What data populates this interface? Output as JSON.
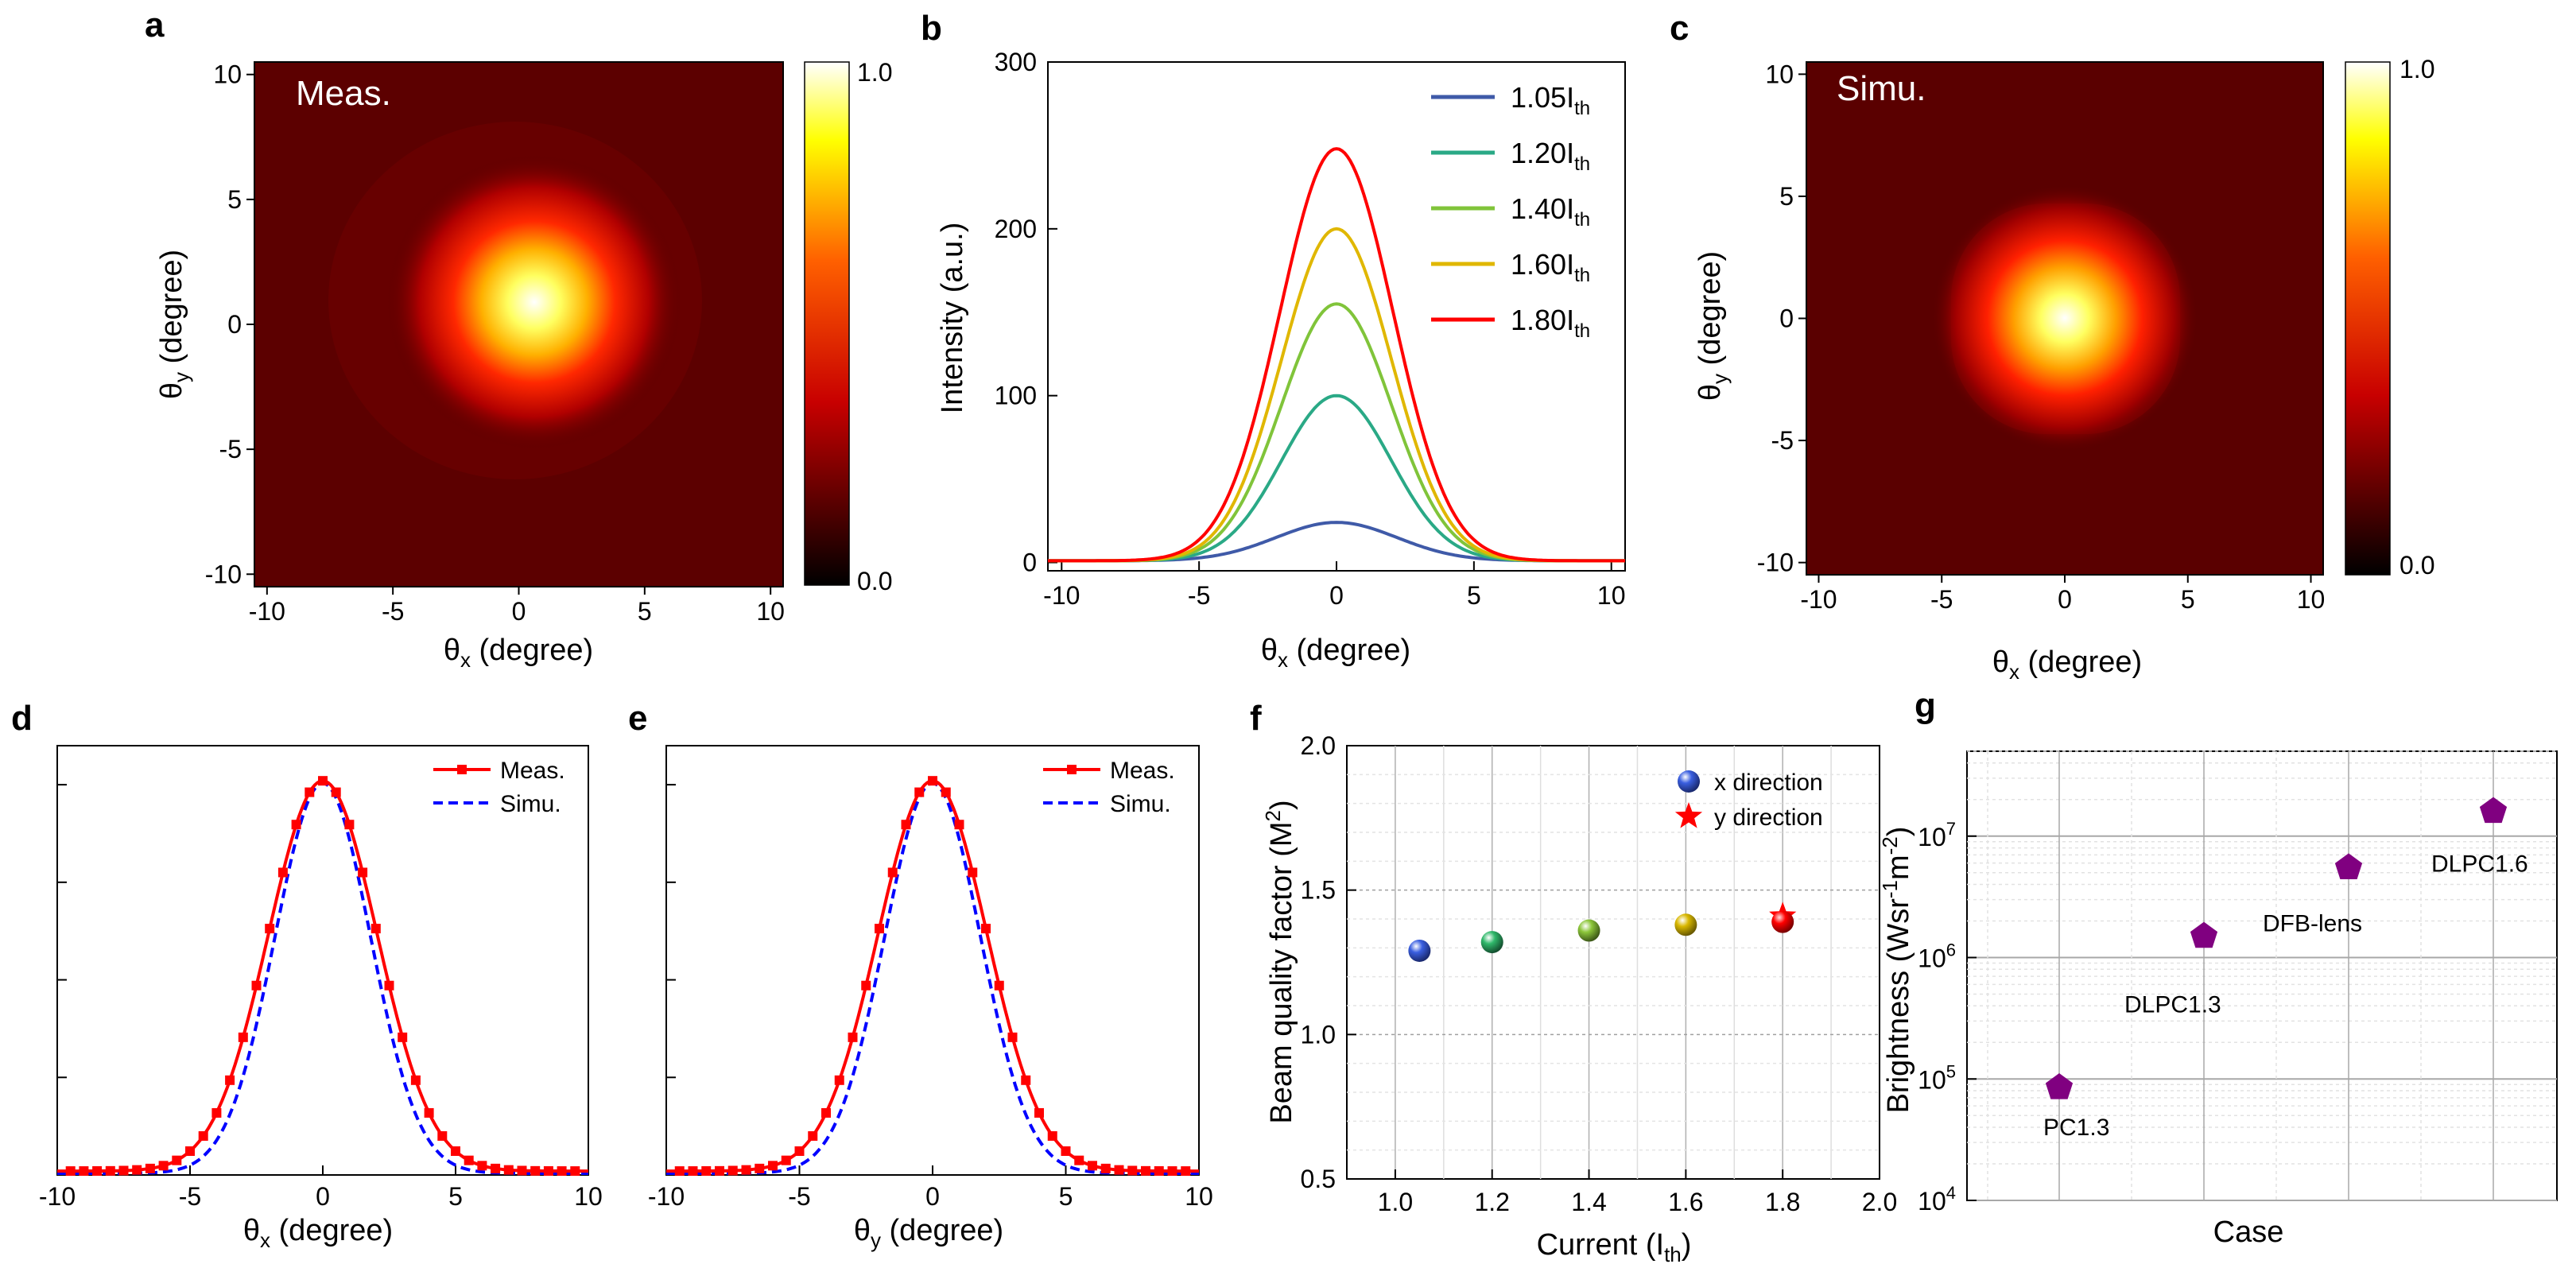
{
  "colors": {
    "hot_low": "#000000",
    "hot_mid": "#e60000",
    "hot_high": "#ffff00",
    "hot_top": "#ffffff",
    "meas_red": "#ff0000",
    "simu_blue": "#0000ff",
    "purple": "#800080"
  },
  "chart_data": [
    {
      "panel": "a",
      "type": "heatmap",
      "inset_label": "Meas.",
      "xlabel_main": "θ",
      "xlabel_sub": "x",
      "xlabel_rest": " (degree)",
      "ylabel_main": "θ",
      "ylabel_sub": "y",
      "ylabel_rest": " (degree)",
      "xlim": [
        -10.5,
        10.5
      ],
      "ylim": [
        -10.5,
        10.5
      ],
      "xticks": [
        -10,
        -5,
        0,
        5,
        10
      ],
      "yticks": [
        -10,
        -5,
        0,
        5,
        10
      ],
      "colorbar": {
        "min_label": "0.0",
        "max_label": "1.0",
        "range": [
          0,
          1
        ]
      },
      "peak": {
        "x": 0.4,
        "y": 0.6,
        "value": 1.0
      }
    },
    {
      "panel": "b",
      "type": "line",
      "xlabel_main": "θ",
      "xlabel_sub": "x",
      "xlabel_rest": " (degree)",
      "ylabel": "Intensity (a.u.)",
      "xlim": [
        -10.5,
        10.5
      ],
      "ylim": [
        -5,
        300
      ],
      "xticks": [
        -10,
        -5,
        0,
        5,
        10
      ],
      "yticks": [
        0,
        100,
        200,
        300
      ],
      "legend_position": "top-right",
      "series": [
        {
          "name": "1.05I",
          "name_sub": "th",
          "color": "#3f5aa8",
          "peak": 24,
          "sigma": 2.2,
          "baseline": 1
        },
        {
          "name": "1.20I",
          "name_sub": "th",
          "color": "#2aa986",
          "peak": 100,
          "sigma": 2.0,
          "baseline": 1
        },
        {
          "name": "1.40I",
          "name_sub": "th",
          "color": "#80c43a",
          "peak": 155,
          "sigma": 2.0,
          "baseline": 1
        },
        {
          "name": "1.60I",
          "name_sub": "th",
          "color": "#e0b700",
          "peak": 200,
          "sigma": 2.0,
          "baseline": 1
        },
        {
          "name": "1.80I",
          "name_sub": "th",
          "color": "#ff0000",
          "peak": 248,
          "sigma": 2.05,
          "baseline": 1
        }
      ]
    },
    {
      "panel": "c",
      "type": "heatmap",
      "inset_label": "Simu.",
      "xlabel_main": "θ",
      "xlabel_sub": "x",
      "xlabel_rest": " (degree)",
      "ylabel_main": "θ",
      "ylabel_sub": "y",
      "ylabel_rest": " (degree)",
      "xlim": [
        -10.5,
        10.5
      ],
      "ylim": [
        -10.5,
        10.5
      ],
      "xticks": [
        -10,
        -5,
        0,
        5,
        10
      ],
      "yticks": [
        -10,
        -5,
        0,
        5,
        10
      ],
      "colorbar": {
        "min_label": "0.0",
        "max_label": "1.0",
        "range": [
          0,
          1
        ]
      },
      "peak": {
        "x": 0,
        "y": 0,
        "value": 1.0
      }
    },
    {
      "panel": "d",
      "type": "line",
      "xlabel_main": "θ",
      "xlabel_sub": "x",
      "xlabel_rest": " (degree)",
      "xlim": [
        -10,
        10
      ],
      "ylim": [
        0,
        1.1
      ],
      "xticks": [
        -10,
        -5,
        0,
        5,
        10
      ],
      "legend_position": "top-right",
      "series": [
        {
          "name": "Meas.",
          "style": "solid-square-markers",
          "color": "#ff0000",
          "sigma": 2.05,
          "peak": 1.0
        },
        {
          "name": "Simu.",
          "style": "dashed",
          "color": "#0000ff",
          "sigma": 1.8,
          "peak": 1.0
        }
      ]
    },
    {
      "panel": "e",
      "type": "line",
      "xlabel_main": "θ",
      "xlabel_sub": "y",
      "xlabel_rest": " (degree)",
      "xlim": [
        -10,
        10
      ],
      "ylim": [
        0,
        1.1
      ],
      "xticks": [
        -10,
        -5,
        0,
        5,
        10
      ],
      "legend_position": "top-right",
      "series": [
        {
          "name": "Meas.",
          "style": "solid-square-markers",
          "color": "#ff0000",
          "sigma": 2.05,
          "peak": 1.0
        },
        {
          "name": "Simu.",
          "style": "dashed",
          "color": "#0000ff",
          "sigma": 1.8,
          "peak": 1.0
        }
      ]
    },
    {
      "panel": "f",
      "type": "scatter",
      "xlabel": "Current (I",
      "xlabel_sub": "th",
      "xlabel_end": ")",
      "ylabel": "Beam quality factor (M",
      "ylabel_sup": "2",
      "ylabel_end": ")",
      "xlim": [
        0.9,
        2.0
      ],
      "ylim": [
        0.5,
        2.0
      ],
      "xticks": [
        "1.0",
        "1.2",
        "1.4",
        "1.6",
        "1.8",
        "2.0"
      ],
      "yticks": [
        "0.5",
        "1.0",
        "1.5",
        "2.0"
      ],
      "legend_position": "top-right",
      "series": [
        {
          "name": "x direction",
          "marker": "sphere",
          "points": [
            {
              "x": 1.05,
              "y": 1.29,
              "color": "#3a5fe0"
            },
            {
              "x": 1.2,
              "y": 1.32,
              "color": "#2fb86a"
            },
            {
              "x": 1.4,
              "y": 1.36,
              "color": "#8cc63a"
            },
            {
              "x": 1.6,
              "y": 1.38,
              "color": "#d9b800"
            },
            {
              "x": 1.8,
              "y": 1.39,
              "color": "#ff0000"
            }
          ]
        },
        {
          "name": "y direction",
          "marker": "star",
          "points": [
            {
              "x": 1.8,
              "y": 1.41,
              "color": "#ff0000"
            }
          ]
        }
      ]
    },
    {
      "panel": "g",
      "type": "scatter",
      "xlabel": "Case",
      "ylabel": "Brightness (Wsr",
      "ylabel_sup1": "-1",
      "ylabel_mid": "m",
      "ylabel_sup2": "-2",
      "ylabel_end": ")",
      "yscale": "log",
      "ylim": [
        10000,
        50000000
      ],
      "ytick_exponents": [
        4,
        5,
        6,
        7
      ],
      "categories": [
        "PC1.3",
        "DLPC1.3",
        "DFB-lens",
        "DLPC1.6"
      ],
      "values": [
        85000,
        1500000,
        5500000,
        16000000
      ],
      "marker": "pentagon",
      "color": "#800080"
    }
  ]
}
